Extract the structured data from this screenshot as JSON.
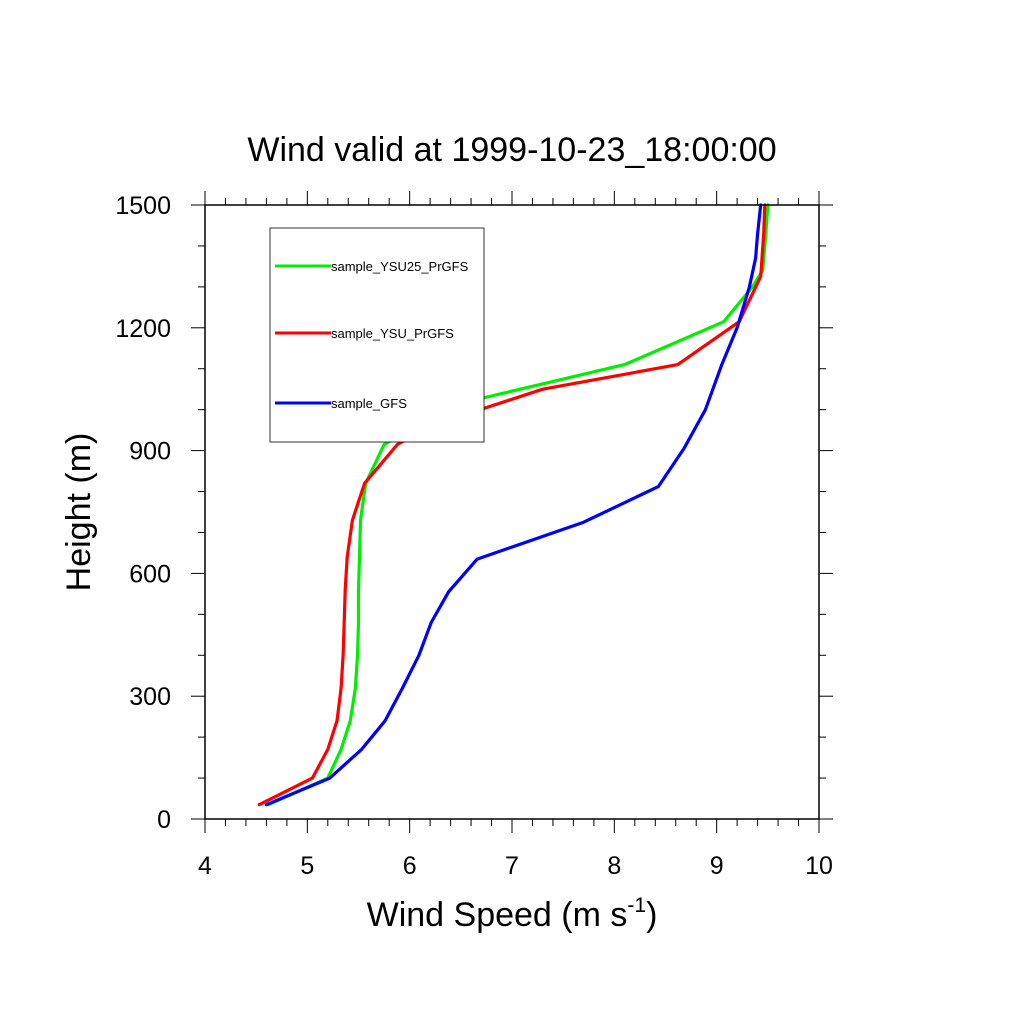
{
  "chart_data": {
    "type": "line",
    "title": "Wind valid at 1999-10-23_18:00:00",
    "xlabel": "Wind Speed (m s",
    "xlabel_sup": "-1",
    "xlabel_suffix": ")",
    "ylabel": "Height (m)",
    "xlim": [
      4,
      10
    ],
    "ylim": [
      0,
      1500
    ],
    "xticks": [
      4,
      5,
      6,
      7,
      8,
      9,
      10
    ],
    "yticks": [
      0,
      300,
      600,
      900,
      1200,
      1500
    ],
    "grid": false,
    "legend_position": "top-left",
    "series": [
      {
        "name": "sample_YSU25_PrGFS",
        "color": "#00ee00",
        "points": [
          [
            4.62,
            35
          ],
          [
            5.2,
            100
          ],
          [
            5.33,
            170
          ],
          [
            5.42,
            240
          ],
          [
            5.47,
            320
          ],
          [
            5.49,
            400
          ],
          [
            5.5,
            480
          ],
          [
            5.5,
            560
          ],
          [
            5.51,
            640
          ],
          [
            5.52,
            730
          ],
          [
            5.57,
            820
          ],
          [
            5.75,
            915
          ],
          [
            6.4,
            1010
          ],
          [
            8.1,
            1110
          ],
          [
            9.07,
            1215
          ],
          [
            9.35,
            1300
          ],
          [
            9.45,
            1340
          ],
          [
            9.48,
            1430
          ],
          [
            9.5,
            1500
          ]
        ]
      },
      {
        "name": "sample_YSU_PrGFS",
        "color": "#ff0000",
        "points": [
          [
            4.53,
            35
          ],
          [
            5.05,
            100
          ],
          [
            5.2,
            170
          ],
          [
            5.29,
            240
          ],
          [
            5.33,
            320
          ],
          [
            5.35,
            400
          ],
          [
            5.36,
            480
          ],
          [
            5.37,
            560
          ],
          [
            5.39,
            640
          ],
          [
            5.44,
            730
          ],
          [
            5.56,
            820
          ],
          [
            5.88,
            915
          ],
          [
            6.2,
            960
          ],
          [
            7.3,
            1050
          ],
          [
            8.62,
            1110
          ],
          [
            9.22,
            1215
          ],
          [
            9.43,
            1325
          ],
          [
            9.46,
            1430
          ],
          [
            9.47,
            1500
          ]
        ]
      },
      {
        "name": "sample_GFS",
        "color": "#0000ff",
        "points": [
          [
            4.6,
            35
          ],
          [
            5.22,
            100
          ],
          [
            5.53,
            170
          ],
          [
            5.76,
            240
          ],
          [
            5.93,
            320
          ],
          [
            6.09,
            400
          ],
          [
            6.21,
            480
          ],
          [
            6.38,
            555
          ],
          [
            6.66,
            635
          ],
          [
            7.7,
            725
          ],
          [
            8.43,
            812
          ],
          [
            8.68,
            905
          ],
          [
            8.89,
            1000
          ],
          [
            9.05,
            1110
          ],
          [
            9.2,
            1200
          ],
          [
            9.32,
            1300
          ],
          [
            9.38,
            1370
          ],
          [
            9.4,
            1430
          ],
          [
            9.43,
            1500
          ]
        ]
      }
    ]
  }
}
